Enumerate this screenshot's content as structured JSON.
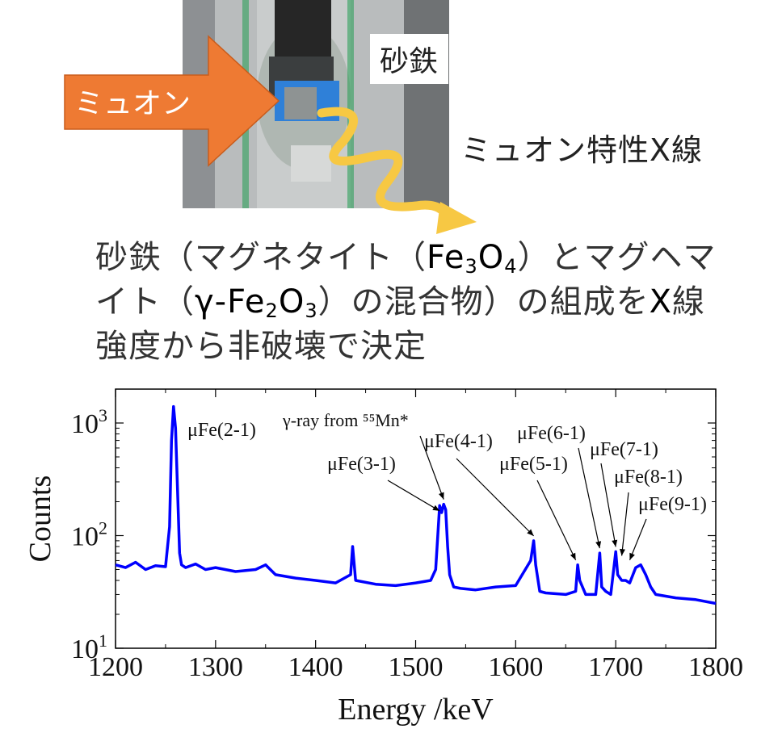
{
  "photo": {
    "arrow_label": "ミュオン",
    "sample_label": "砂鉄"
  },
  "xray_label": "ミュオン特性X線",
  "description": {
    "line1_a": "砂鉄（マグネタイト（",
    "fe3o4": {
      "fe": "Fe",
      "n1": "3",
      "o": "O",
      "n2": "4"
    },
    "line1_b": "）とマグヘマ",
    "line2_a": "イト（",
    "gfe2o3": {
      "g": "γ-Fe",
      "n1": "2",
      "o": "O",
      "n2": "3"
    },
    "line2_b": "）の混合物）の組成を",
    "line2_x": "X",
    "line2_c": "線",
    "line3": "強度から非破壊で決定"
  },
  "colors": {
    "arrow": "#ee7a33",
    "series": "#0000ff",
    "wavy": "#f7c843",
    "label_box": "#ffffff"
  },
  "chart_data": {
    "type": "line",
    "xlabel": "Energy /keV",
    "ylabel": "Counts",
    "xlim": [
      1200,
      1800
    ],
    "ylim": [
      10,
      2000
    ],
    "yscale": "log",
    "x_ticks": [
      1200,
      1300,
      1400,
      1500,
      1600,
      1700,
      1800
    ],
    "y_ticks": [
      {
        "base": "10",
        "exp": "1",
        "value": 10
      },
      {
        "base": "10",
        "exp": "2",
        "value": 100
      },
      {
        "base": "10",
        "exp": "3",
        "value": 1000
      }
    ],
    "series": [
      {
        "x": [
          1200,
          1210,
          1220,
          1230,
          1240,
          1250,
          1254,
          1256,
          1258,
          1260,
          1262,
          1264,
          1266,
          1270,
          1280,
          1290,
          1300,
          1320,
          1340,
          1350,
          1360,
          1380,
          1400,
          1420,
          1435,
          1437,
          1440,
          1460,
          1480,
          1500,
          1515,
          1520,
          1524,
          1526,
          1528,
          1530,
          1532,
          1534,
          1538,
          1545,
          1560,
          1580,
          1600,
          1615,
          1618,
          1620,
          1624,
          1630,
          1650,
          1660,
          1662,
          1664,
          1670,
          1680,
          1684,
          1686,
          1690,
          1695,
          1700,
          1702,
          1706,
          1710,
          1714,
          1720,
          1725,
          1730,
          1735,
          1740,
          1760,
          1780,
          1800
        ],
        "y": [
          55,
          52,
          58,
          50,
          54,
          53,
          120,
          700,
          1400,
          900,
          250,
          70,
          55,
          52,
          56,
          50,
          52,
          48,
          50,
          55,
          45,
          42,
          40,
          38,
          45,
          80,
          40,
          37,
          36,
          38,
          40,
          50,
          185,
          160,
          190,
          170,
          80,
          45,
          35,
          34,
          33,
          35,
          36,
          60,
          90,
          55,
          32,
          31,
          30,
          32,
          55,
          40,
          30,
          30,
          70,
          35,
          32,
          30,
          72,
          45,
          40,
          40,
          38,
          52,
          55,
          45,
          35,
          30,
          28,
          27,
          25
        ]
      }
    ],
    "annotations": [
      {
        "text": "μFe(2-1)",
        "x": 1260,
        "y": 1400
      },
      {
        "text": "γ-ray from ⁵⁵Mn*",
        "x": 1528,
        "y": 190
      },
      {
        "text": "μFe(3-1)",
        "x": 1524,
        "y": 150
      },
      {
        "text": "μFe(4-1)",
        "x": 1618,
        "y": 90
      },
      {
        "text": "μFe(5-1)",
        "x": 1660,
        "y": 55
      },
      {
        "text": "μFe(6-1)",
        "x": 1684,
        "y": 70
      },
      {
        "text": "μFe(7-1)",
        "x": 1700,
        "y": 72
      },
      {
        "text": "μFe(8-1)",
        "x": 1706,
        "y": 60
      },
      {
        "text": "μFe(9-1)",
        "x": 1714,
        "y": 55
      }
    ]
  }
}
